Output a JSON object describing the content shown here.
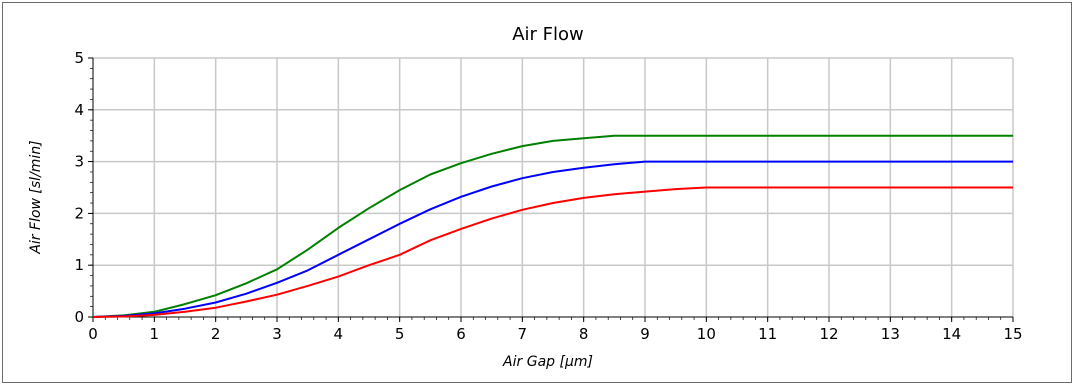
{
  "chart_data": {
    "type": "line",
    "title": "Air Flow",
    "xlabel": "Air Gap [µm]",
    "ylabel": "Air Flow [sl/min]",
    "xlim": [
      0,
      15
    ],
    "ylim": [
      0,
      5
    ],
    "xticks": [
      0,
      1,
      2,
      3,
      4,
      5,
      6,
      7,
      8,
      9,
      10,
      11,
      12,
      13,
      14,
      15
    ],
    "yticks": [
      0,
      1,
      2,
      3,
      4,
      5
    ],
    "grid": true,
    "legend": "none",
    "series": [
      {
        "color": "#008000",
        "x": [
          0,
          0.5,
          1,
          1.5,
          2,
          2.5,
          3,
          3.5,
          4,
          4.5,
          5,
          5.5,
          6,
          6.5,
          7,
          7.5,
          8,
          8.5,
          9,
          10,
          11,
          12,
          13,
          14,
          15
        ],
        "y": [
          0,
          0.03,
          0.1,
          0.25,
          0.42,
          0.65,
          0.92,
          1.3,
          1.72,
          2.1,
          2.45,
          2.75,
          2.97,
          3.15,
          3.3,
          3.4,
          3.45,
          3.5,
          3.5,
          3.5,
          3.5,
          3.5,
          3.5,
          3.5,
          3.5
        ]
      },
      {
        "color": "#0000ff",
        "x": [
          0,
          0.5,
          1,
          1.5,
          2,
          2.5,
          3,
          3.5,
          4,
          4.5,
          5,
          5.5,
          6,
          6.5,
          7,
          7.5,
          8,
          8.5,
          9,
          10,
          11,
          12,
          13,
          14,
          15
        ],
        "y": [
          0,
          0.02,
          0.07,
          0.16,
          0.28,
          0.45,
          0.66,
          0.9,
          1.2,
          1.5,
          1.8,
          2.08,
          2.32,
          2.52,
          2.68,
          2.8,
          2.88,
          2.95,
          3.0,
          3.0,
          3.0,
          3.0,
          3.0,
          3.0,
          3.0
        ]
      },
      {
        "color": "#ff0000",
        "x": [
          0,
          0.5,
          1,
          1.5,
          2,
          2.5,
          3,
          3.5,
          4,
          4.5,
          5,
          5.5,
          6,
          6.5,
          7,
          7.5,
          8,
          8.5,
          9,
          9.5,
          10,
          11,
          12,
          13,
          14,
          15
        ],
        "y": [
          0,
          0.01,
          0.04,
          0.1,
          0.18,
          0.3,
          0.43,
          0.6,
          0.78,
          1.0,
          1.2,
          1.48,
          1.7,
          1.9,
          2.07,
          2.2,
          2.3,
          2.37,
          2.42,
          2.47,
          2.5,
          2.5,
          2.5,
          2.5,
          2.5,
          2.5
        ]
      }
    ]
  }
}
